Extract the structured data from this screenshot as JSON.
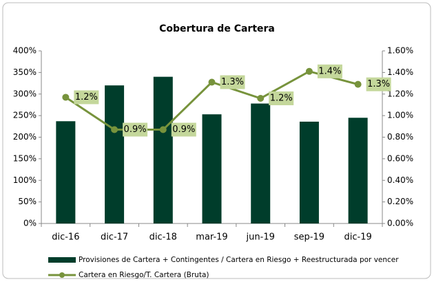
{
  "chart_data": {
    "type": "bar_line",
    "title": "Cobertura de Cartera",
    "categories": [
      "dic-16",
      "dic-17",
      "dic-18",
      "mar-19",
      "jun-19",
      "sep-19",
      "dic-19"
    ],
    "series": [
      {
        "name": "Provisiones de Cartera + Contingentes / Cartera en Riesgo + Reestructurada por vencer",
        "type": "bar",
        "color": "#003d2b",
        "values": [
          237,
          320,
          340,
          253,
          278,
          236,
          245
        ]
      },
      {
        "name": "Cartera en Riesgo/T. Cartera (Bruta)",
        "type": "line",
        "axis": "y2",
        "color": "#77933c",
        "values": [
          1.17,
          0.87,
          0.87,
          1.31,
          1.16,
          1.41,
          1.29
        ],
        "value_labels": [
          "1.2%",
          "0.9%",
          "0.9%",
          "1.3%",
          "1.2%",
          "1.4%",
          "1.3%"
        ]
      }
    ],
    "ylim": [
      0,
      400
    ],
    "yticks": [
      {
        "value": 0,
        "label": "0%"
      },
      {
        "value": 50,
        "label": "50%"
      },
      {
        "value": 100,
        "label": "100%"
      },
      {
        "value": 150,
        "label": "150%"
      },
      {
        "value": 200,
        "label": "200%"
      },
      {
        "value": 250,
        "label": "250%"
      },
      {
        "value": 300,
        "label": "300%"
      },
      {
        "value": 350,
        "label": "350%"
      },
      {
        "value": 400,
        "label": "400%"
      }
    ],
    "y2lim": [
      0,
      1.6
    ],
    "y2ticks": [
      {
        "value": 0,
        "label": "0.00%"
      },
      {
        "value": 0.2,
        "label": "0.20%"
      },
      {
        "value": 0.4,
        "label": "0.40%"
      },
      {
        "value": 0.6,
        "label": "0.60%"
      },
      {
        "value": 0.8,
        "label": "0.80%"
      },
      {
        "value": 1.0,
        "label": "1.00%"
      },
      {
        "value": 1.2,
        "label": "1.20%"
      },
      {
        "value": 1.4,
        "label": "1.40%"
      },
      {
        "value": 1.6,
        "label": "1.60%"
      }
    ],
    "grid": false,
    "legend": "bottom"
  }
}
